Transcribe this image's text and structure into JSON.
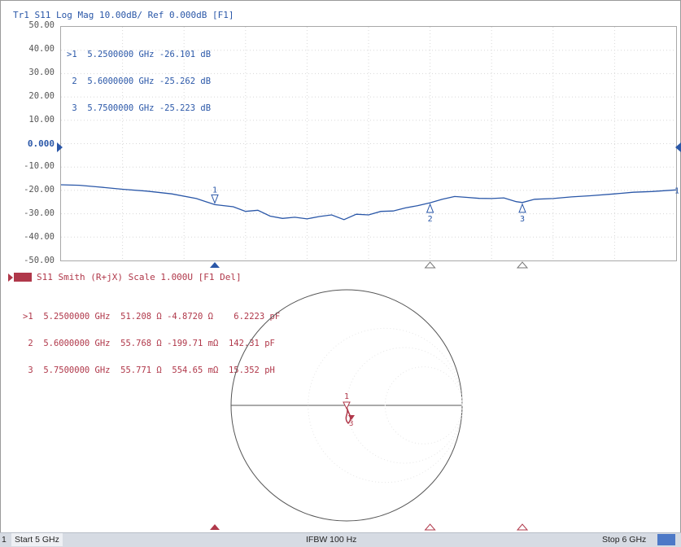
{
  "trace1": {
    "title": "Tr1 S11 Log Mag 10.00dB/ Ref 0.000dB [F1]",
    "y_ticks": [
      "50.00",
      "40.00",
      "30.00",
      "20.00",
      "10.00",
      "0.000",
      "-10.00",
      "-20.00",
      "-30.00",
      "-40.00",
      "-50.00"
    ],
    "markers": [
      {
        "label": "1",
        "sel": ">1",
        "freq": "5.2500000 GHz",
        "value": "-26.101 dB"
      },
      {
        "label": "2",
        "sel": "2",
        "freq": "5.6000000 GHz",
        "value": "-25.262 dB"
      },
      {
        "label": "3",
        "sel": "3",
        "freq": "5.7500000 GHz",
        "value": "-25.223 dB"
      }
    ],
    "color": "#2a57a8"
  },
  "trace2": {
    "title": "S11 Smith (R+jX) Scale 1.000U [F1 Del]",
    "markers": [
      {
        "sel": ">1",
        "freq": "5.2500000 GHz",
        "r": "51.208 Ω",
        "x": "-4.8720 Ω",
        "lc": "6.2223 pF"
      },
      {
        "sel": "2",
        "freq": "5.6000000 GHz",
        "r": "55.768 Ω",
        "x": "-199.71 mΩ",
        "lc": "142.31 pF"
      },
      {
        "sel": "3",
        "freq": "5.7500000 GHz",
        "r": "55.771 Ω",
        "x": "554.65 mΩ",
        "lc": "15.352 pH"
      }
    ],
    "color": "#b0384a"
  },
  "status": {
    "channel": "1",
    "start": "Start 5 GHz",
    "ifbw": "IFBW 100 Hz",
    "stop": "Stop 6 GHz"
  },
  "chart_data": {
    "type": "line",
    "title": "Tr1 S11 Log Mag 10.00dB/ Ref 0.000dB [F1]",
    "x_unit": "GHz",
    "xlim": [
      5,
      6
    ],
    "ylim": [
      -50,
      50
    ],
    "series": [
      {
        "name": "S11",
        "x": [
          5.0,
          5.03,
          5.06,
          5.1,
          5.14,
          5.18,
          5.22,
          5.25,
          5.28,
          5.3,
          5.32,
          5.34,
          5.36,
          5.38,
          5.4,
          5.42,
          5.44,
          5.46,
          5.48,
          5.5,
          5.52,
          5.54,
          5.56,
          5.58,
          5.6,
          5.62,
          5.64,
          5.66,
          5.68,
          5.7,
          5.72,
          5.74,
          5.75,
          5.77,
          5.8,
          5.83,
          5.86,
          5.9,
          5.93,
          5.96,
          6.0
        ],
        "y": [
          -17.6,
          -17.8,
          -18.5,
          -19.5,
          -20.3,
          -21.5,
          -23.5,
          -26.1,
          -27.0,
          -29.0,
          -28.5,
          -31.0,
          -32.0,
          -31.5,
          -32.2,
          -31.2,
          -30.5,
          -32.5,
          -30.2,
          -30.5,
          -29.0,
          -28.8,
          -27.5,
          -26.5,
          -25.3,
          -23.8,
          -22.6,
          -23.0,
          -23.4,
          -23.5,
          -23.2,
          -24.8,
          -25.2,
          -23.8,
          -23.5,
          -22.8,
          -22.3,
          -21.5,
          -20.8,
          -20.5,
          -19.8
        ]
      }
    ],
    "markers": [
      {
        "label": "1",
        "x": 5.25,
        "y": -26.101
      },
      {
        "label": "2",
        "x": 5.6,
        "y": -25.262
      },
      {
        "label": "3",
        "x": 5.75,
        "y": -25.223
      }
    ]
  }
}
